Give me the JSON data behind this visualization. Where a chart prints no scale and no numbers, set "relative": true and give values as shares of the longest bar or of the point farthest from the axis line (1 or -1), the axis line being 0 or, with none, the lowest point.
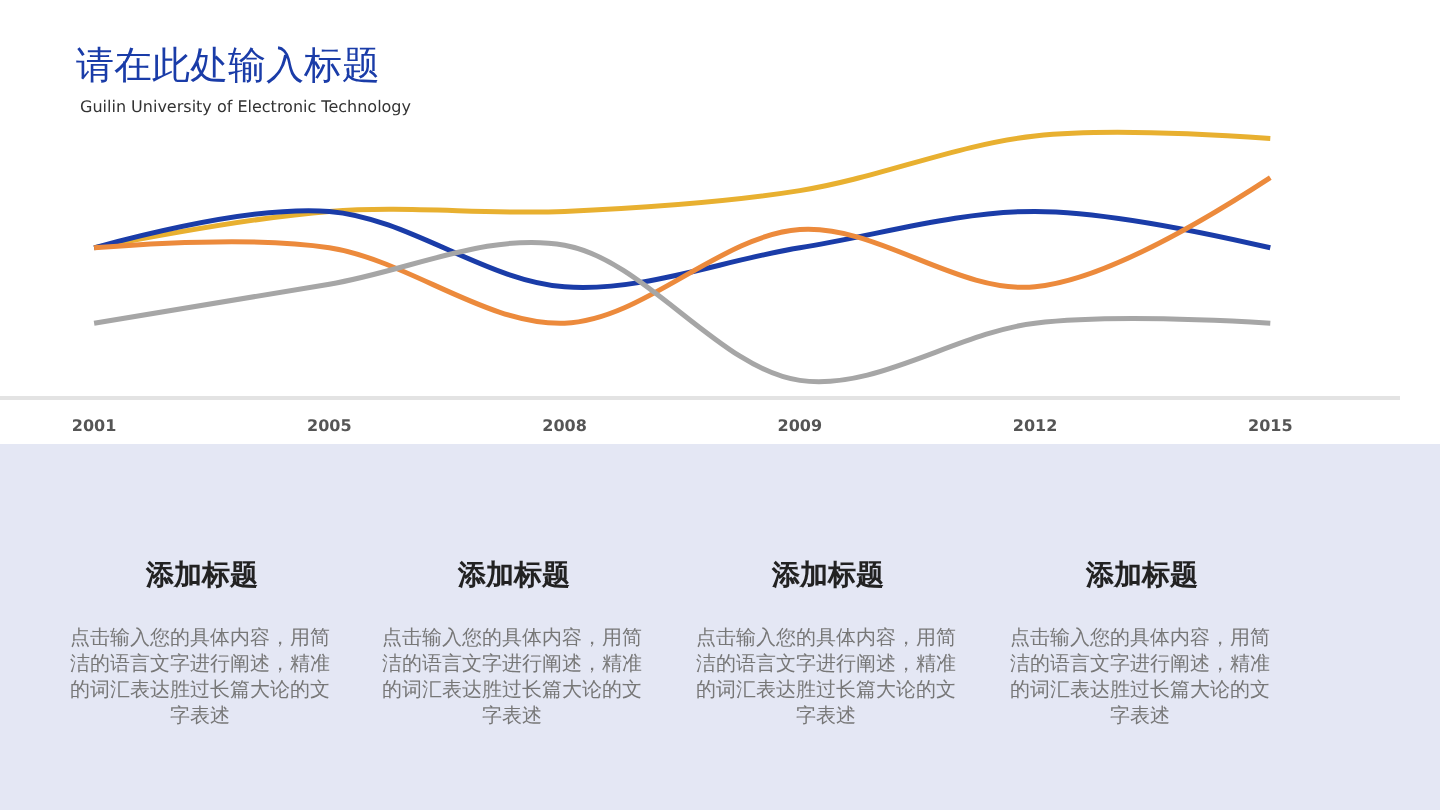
{
  "chart_data": [
    {
      "type": "line",
      "title": "请在此处输入标题",
      "subtitle": "Guilin University of Electronic Technology",
      "categories": [
        "2001",
        "2005",
        "2008",
        "2009",
        "2012",
        "2015"
      ],
      "relative": true,
      "marker": "none",
      "line_style": "solid",
      "series": [
        {
          "color": "#e8b030",
          "values": [
            0.57,
            0.71,
            0.71,
            0.79,
            1,
            0.99
          ]
        },
        {
          "color": "#1a3ca8",
          "values": [
            0.57,
            0.71,
            0.42,
            0.57,
            0.71,
            0.57
          ]
        },
        {
          "color": "#ec8a3c",
          "values": [
            0.57,
            0.57,
            0.28,
            0.64,
            0.42,
            0.84
          ]
        },
        {
          "color": "#a6a6a6",
          "values": [
            0.28,
            0.43,
            0.58,
            0.06,
            0.28,
            0.28
          ]
        }
      ]
    },
    {
      "type": "other",
      "annotations": [
        "添加标题",
        "点击输入您的具体内容，用简洁的语言文字进行阐述，精准的词汇表达胜过长篇大论的文字表述",
        "添加标题",
        "点击输入您的具体内容，用简洁的语言文字进行阐述，精准的词汇表达胜过长篇大论的文字表述",
        "添加标题",
        "点击输入您的具体内容，用简洁的语言文字进行阐述，精准的词汇表达胜过长篇大论的文字表述",
        "添加标题",
        "点击输入您的具体内容，用简洁的语言文字进行阐述，精准的词汇表达胜过长篇大论的文字表述"
      ]
    }
  ]
}
